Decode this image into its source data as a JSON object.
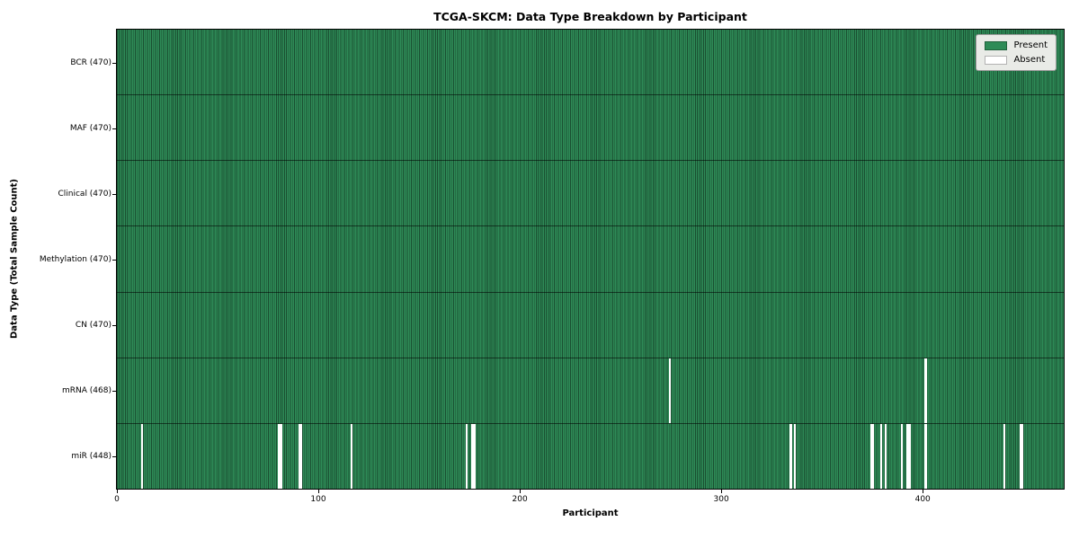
{
  "title": "TCGA-SKCM: Data Type Breakdown by Participant",
  "xlabel": "Participant",
  "ylabel": "Data Type (Total Sample Count)",
  "colors": {
    "present": "#2e8b57",
    "present_edge": "#1a4f31",
    "absent": "#ffffff",
    "legend_bg": "#e9ebe7"
  },
  "chart_data": {
    "type": "heatmap",
    "title": "TCGA-SKCM: Data Type Breakdown by Participant",
    "xlabel": "Participant",
    "ylabel": "Data Type (Total Sample Count)",
    "x_axis": {
      "ticks": [
        0,
        100,
        200,
        300,
        400
      ],
      "range": [
        0,
        470
      ]
    },
    "n_participants": 470,
    "legend": [
      {
        "label": "Present",
        "color": "#2e8b57"
      },
      {
        "label": "Absent",
        "color": "#ffffff"
      }
    ],
    "legend_position": "upper right",
    "rows": [
      {
        "label": "BCR (470)",
        "data_type": "BCR",
        "total": 470,
        "absent": []
      },
      {
        "label": "MAF (470)",
        "data_type": "MAF",
        "total": 470,
        "absent": []
      },
      {
        "label": "Clinical (470)",
        "data_type": "Clinical",
        "total": 470,
        "absent": []
      },
      {
        "label": "Methylation (470)",
        "data_type": "Methylation",
        "total": 470,
        "absent": []
      },
      {
        "label": "CN (470)",
        "data_type": "CN",
        "total": 470,
        "absent": []
      },
      {
        "label": "mRNA (468)",
        "data_type": "mRNA",
        "total": 468,
        "absent": [
          274,
          401
        ]
      },
      {
        "label": "miR (448)",
        "data_type": "miR",
        "total": 448,
        "absent": [
          12,
          80,
          81,
          90,
          91,
          116,
          173,
          176,
          177,
          334,
          336,
          374,
          375,
          379,
          381,
          389,
          392,
          393,
          401,
          440,
          448,
          449
        ]
      }
    ]
  }
}
